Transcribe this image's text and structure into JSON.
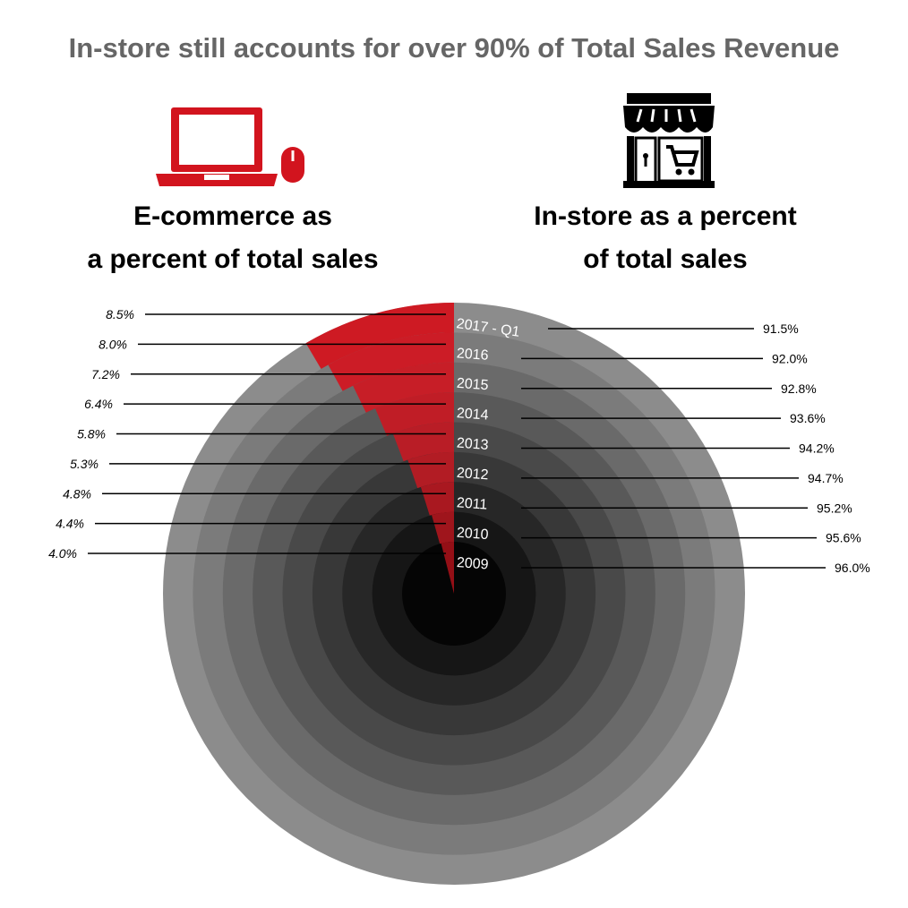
{
  "title": "In-store still accounts for over 90% of Total Sales Revenue",
  "icons": {
    "left": "laptop-mouse-icon",
    "right": "storefront-cart-icon"
  },
  "headings": {
    "ecommerce": [
      "E-commerce as",
      "a percent of total sales"
    ],
    "instore": [
      "In-store as a percent",
      "of total sales"
    ]
  },
  "colors": {
    "ecommerce": "#d2141e",
    "instore_outer": "#8c8c8c",
    "instore_inner": "#050505",
    "title": "#666666"
  },
  "chart_data": {
    "type": "pie",
    "description_type": "concentric-pie",
    "categories": [
      "2017 - Q1",
      "2016",
      "2015",
      "2014",
      "2013",
      "2012",
      "2011",
      "2010",
      "2009"
    ],
    "series": [
      {
        "name": "E-commerce as a percent of total sales",
        "values": [
          8.5,
          8.0,
          7.2,
          6.4,
          5.8,
          5.3,
          4.8,
          4.4,
          4.0
        ],
        "labels": [
          "8.5%",
          "8.0%",
          "7.2%",
          "6.4%",
          "5.8%",
          "5.3%",
          "4.8%",
          "4.4%",
          "4.0%"
        ]
      },
      {
        "name": "In-store as a percent of total sales",
        "values": [
          91.5,
          92.0,
          92.8,
          93.6,
          94.2,
          94.7,
          95.2,
          95.6,
          96.0
        ],
        "labels": [
          "91.5%",
          "92.0%",
          "92.8%",
          "93.6%",
          "94.2%",
          "94.7%",
          "95.2%",
          "95.6%",
          "96.0%"
        ]
      }
    ]
  }
}
